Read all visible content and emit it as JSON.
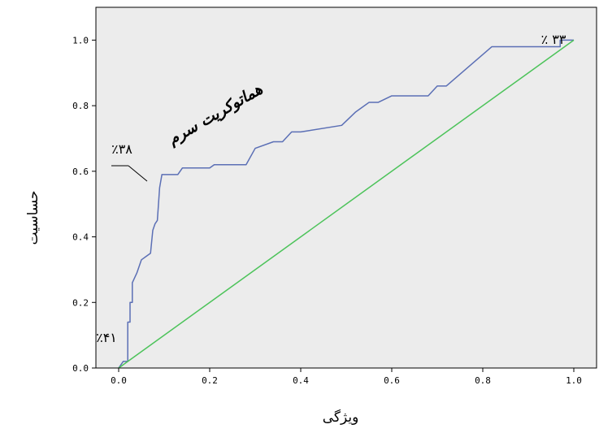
{
  "chart_data": {
    "type": "line",
    "title": "",
    "xlabel": "ویژگی",
    "ylabel": "حساسیت",
    "xlim": [
      -0.05,
      1.05
    ],
    "ylim": [
      0.0,
      1.1
    ],
    "x_ticks": [
      "0.0",
      "0.2",
      "0.4",
      "0.6",
      "0.8",
      "1.0"
    ],
    "y_ticks": [
      "0.0",
      "0.2",
      "0.4",
      "0.6",
      "0.8",
      "1.0"
    ],
    "x_tick_values": [
      0.0,
      0.2,
      0.4,
      0.6,
      0.8,
      1.0
    ],
    "y_tick_values": [
      0.0,
      0.2,
      0.4,
      0.6,
      0.8,
      1.0
    ],
    "grid": false,
    "background_color": "#ececec",
    "series": [
      {
        "name": "هماتوکریت سرم",
        "color": "#5b6fb5",
        "x": [
          0.0,
          0.01,
          0.02,
          0.02,
          0.025,
          0.025,
          0.03,
          0.03,
          0.04,
          0.05,
          0.06,
          0.07,
          0.075,
          0.08,
          0.085,
          0.09,
          0.095,
          0.13,
          0.14,
          0.2,
          0.21,
          0.28,
          0.3,
          0.34,
          0.36,
          0.38,
          0.4,
          0.49,
          0.52,
          0.55,
          0.57,
          0.6,
          0.68,
          0.7,
          0.72,
          0.82,
          0.97,
          0.97,
          1.0
        ],
        "y": [
          0.0,
          0.02,
          0.02,
          0.14,
          0.14,
          0.2,
          0.2,
          0.26,
          0.29,
          0.33,
          0.34,
          0.35,
          0.42,
          0.44,
          0.45,
          0.55,
          0.59,
          0.59,
          0.61,
          0.61,
          0.62,
          0.62,
          0.67,
          0.69,
          0.69,
          0.72,
          0.72,
          0.74,
          0.78,
          0.81,
          0.81,
          0.83,
          0.83,
          0.86,
          0.86,
          0.98,
          0.98,
          1.0,
          1.0
        ]
      },
      {
        "name": "",
        "color": "#4cc35a",
        "x": [
          0.0,
          1.0
        ],
        "y": [
          0.0,
          1.0
        ]
      }
    ],
    "annotations": [
      {
        "text": "هماتوکریت سرم",
        "type": "curve-label"
      },
      {
        "text": "٪۳۸",
        "x": 0.09,
        "y": 0.59
      },
      {
        "text": "٪۴۱",
        "x": 0.0,
        "y": 0.0
      },
      {
        "text": "٪ ۳۳",
        "x": 1.0,
        "y": 1.0
      }
    ]
  }
}
